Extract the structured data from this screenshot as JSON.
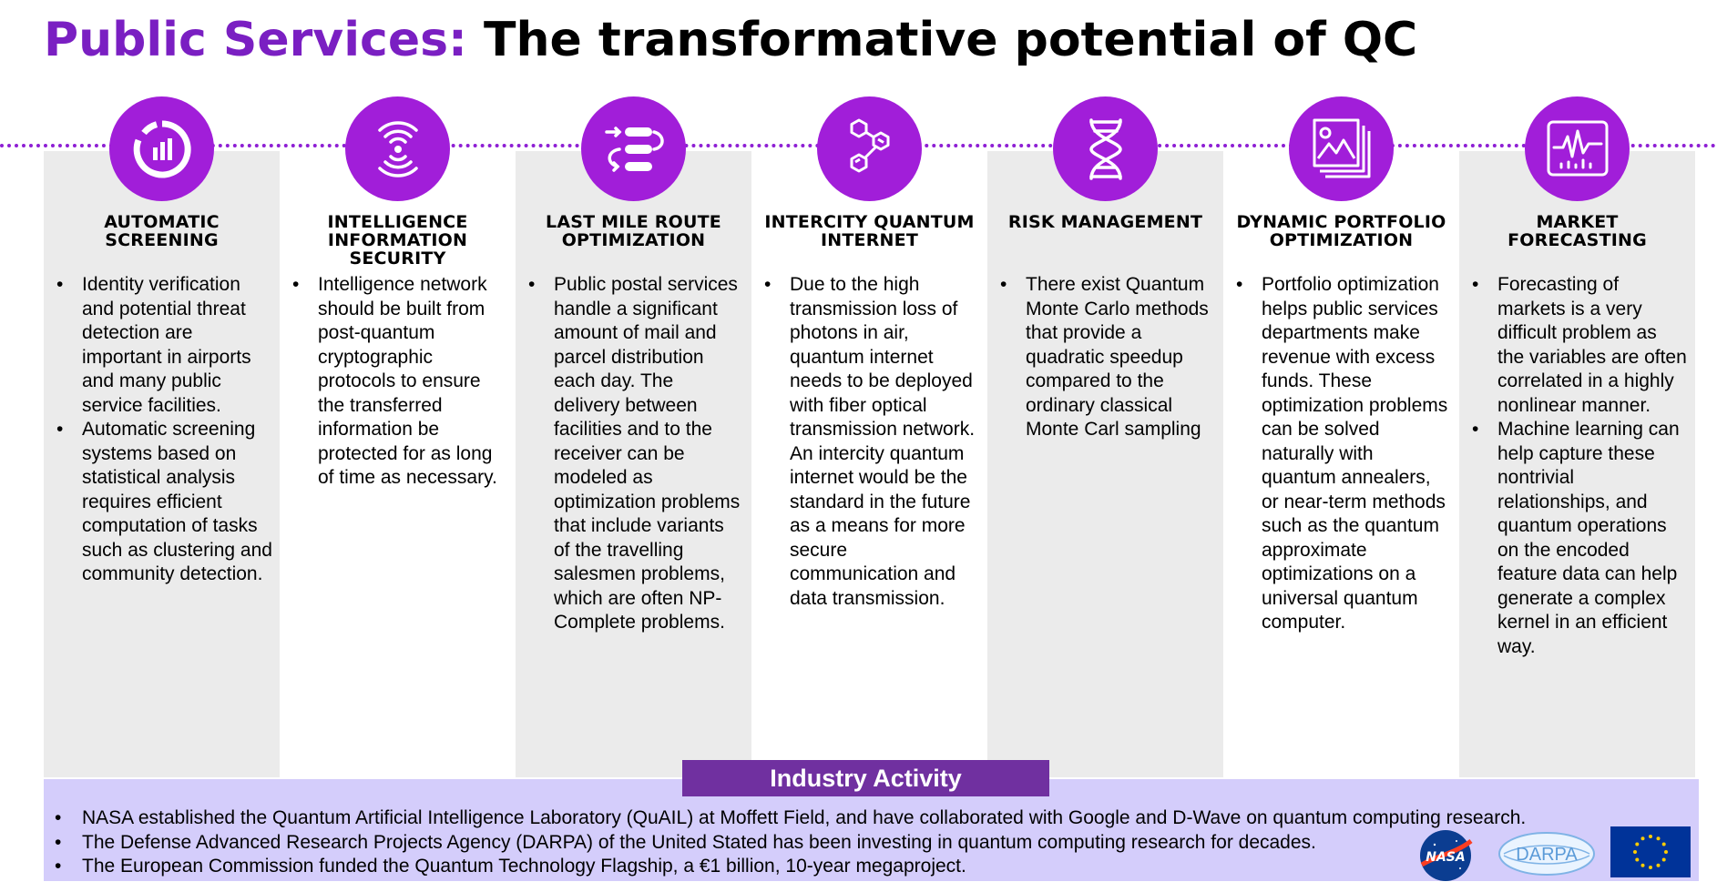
{
  "title": {
    "accent": "Public Services:",
    "main": "The transformative potential of QC"
  },
  "colors": {
    "accent": "#7a1fc2",
    "icon_circle": "#a11ed9",
    "column_shade": "#ebebeb",
    "industry_bg": "#d4cdfb",
    "industry_tab": "#7030a0"
  },
  "columns": [
    {
      "icon": "donut-chart-icon",
      "heading": "AUTOMATIC SCREENING",
      "bullets": [
        "Identity verification and potential threat detection are important in airports and many public service facilities.",
        "Automatic screening systems based on statistical analysis requires efficient computation of tasks such as clustering and community detection."
      ]
    },
    {
      "icon": "signal-waves-icon",
      "heading": "INTELLIGENCE INFORMATION SECURITY",
      "bullets": [
        "Intelligence network should be built from post-quantum cryptographic protocols to ensure the transferred information be protected for as long of time as necessary."
      ]
    },
    {
      "icon": "route-arrows-icon",
      "heading": "LAST MILE ROUTE OPTIMIZATION",
      "bullets": [
        "Public postal services handle a significant amount of mail and parcel distribution each day. The delivery between facilities and to the receiver can be modeled as optimization problems that include variants of the travelling salesmen problems, which are often NP-Complete problems."
      ]
    },
    {
      "icon": "molecule-icon",
      "heading": "INTERCITY QUANTUM INTERNET",
      "bullets": [
        "Due to the high transmission loss of photons in air, quantum internet needs to be deployed with fiber optical transmission network. An intercity quantum internet would be the standard in the future as a means for more secure communication and data transmission."
      ]
    },
    {
      "icon": "dna-icon",
      "heading": "RISK MANAGEMENT",
      "bullets": [
        "There exist Quantum Monte Carlo methods that provide a quadratic speedup compared to the ordinary classical Monte Carl sampling"
      ]
    },
    {
      "icon": "image-stack-icon",
      "heading": "DYNAMIC PORTFOLIO OPTIMIZATION",
      "bullets": [
        "Portfolio optimization helps public services departments make revenue with excess funds. These optimization problems can be solved naturally with quantum annealers, or near-term methods such as the quantum approximate optimizations on a universal quantum computer."
      ]
    },
    {
      "icon": "market-chart-icon",
      "heading": "MARKET FORECASTING",
      "bullets": [
        "Forecasting of markets is a very difficult problem as the variables are often correlated in a highly nonlinear manner.",
        "Machine learning can help capture these nontrivial relationships, and quantum operations on the encoded feature data can help generate a complex kernel in an efficient way."
      ]
    }
  ],
  "industry": {
    "heading": "Industry Activity",
    "items": [
      "NASA established the Quantum Artificial Intelligence Laboratory (QuAIL) at Moffett Field, and have collaborated with Google and D-Wave on quantum computing research.",
      "The Defense Advanced Research Projects Agency (DARPA) of the United Stated has been investing in quantum computing research for decades.",
      "The European Commission funded the Quantum Technology Flagship, a €1 billion, 10-year megaproject."
    ],
    "logos": {
      "nasa": "NASA",
      "darpa": "DARPA",
      "eu": "eu-flag-icon"
    }
  }
}
